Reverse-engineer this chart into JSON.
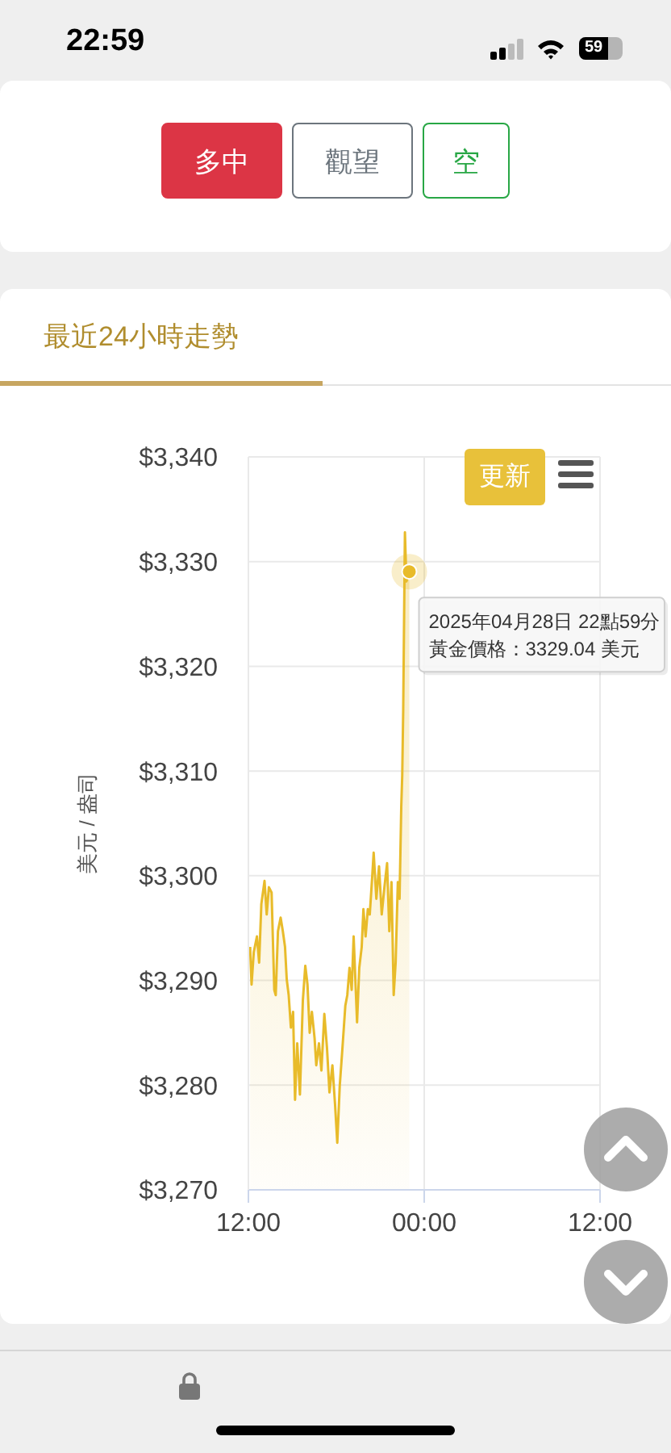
{
  "chart_data": {
    "type": "area",
    "title": "最近24小時走勢",
    "ylabel": "美元 / 盎司",
    "x": [
      "2025-04-28T12:07",
      "2025-04-28T12:13",
      "2025-04-28T12:22",
      "2025-04-28T12:35",
      "2025-04-28T12:44",
      "2025-04-28T12:53",
      "2025-04-28T13:06",
      "2025-04-28T13:15",
      "2025-04-28T13:24",
      "2025-04-28T13:35",
      "2025-04-28T13:46",
      "2025-04-28T13:52",
      "2025-04-28T14:01",
      "2025-04-28T14:12",
      "2025-04-28T14:21",
      "2025-04-28T14:30",
      "2025-04-28T14:37",
      "2025-04-28T14:45",
      "2025-04-28T14:54",
      "2025-04-28T15:03",
      "2025-04-28T15:11",
      "2025-04-28T15:20",
      "2025-04-28T15:31",
      "2025-04-28T15:43",
      "2025-04-28T15:53",
      "2025-04-28T16:02",
      "2025-04-28T16:11",
      "2025-04-28T16:20",
      "2025-04-28T16:31",
      "2025-04-28T16:38",
      "2025-04-28T16:49",
      "2025-04-28T16:59",
      "2025-04-28T17:11",
      "2025-04-28T17:22",
      "2025-04-28T17:32",
      "2025-04-28T17:44",
      "2025-04-28T17:55",
      "2025-04-28T18:04",
      "2025-04-28T18:14",
      "2025-04-28T18:25",
      "2025-04-28T18:37",
      "2025-04-28T18:45",
      "2025-04-28T18:54",
      "2025-04-28T19:03",
      "2025-04-28T19:11",
      "2025-04-28T19:25",
      "2025-04-28T19:34",
      "2025-04-28T19:44",
      "2025-04-28T19:51",
      "2025-04-28T20:00",
      "2025-04-28T20:09",
      "2025-04-28T20:17",
      "2025-04-28T20:27",
      "2025-04-28T20:33",
      "2025-04-28T20:44",
      "2025-04-28T20:55",
      "2025-04-28T21:06",
      "2025-04-28T21:17",
      "2025-04-28T21:28",
      "2025-04-28T21:37",
      "2025-04-28T21:46",
      "2025-04-28T21:55",
      "2025-04-28T22:03",
      "2025-04-28T22:12",
      "2025-04-28T22:19",
      "2025-04-28T22:26",
      "2025-04-28T22:30",
      "2025-04-28T22:34",
      "2025-04-28T22:41",
      "2025-04-28T22:47",
      "2025-04-28T22:59"
    ],
    "series": [
      {
        "color": "#e8bb2a",
        "values": [
          3293.2,
          3289.6,
          3292.7,
          3294.2,
          3291.7,
          3297.3,
          3299.5,
          3296.3,
          3298.9,
          3298.4,
          3289.1,
          3288.6,
          3294.7,
          3296.0,
          3294.7,
          3293.2,
          3290.1,
          3288.6,
          3285.5,
          3287.0,
          3278.6,
          3284.0,
          3279.1,
          3288.1,
          3291.4,
          3289.6,
          3285.0,
          3287.0,
          3284.5,
          3281.9,
          3284.0,
          3281.4,
          3286.8,
          3283.5,
          3279.3,
          3281.9,
          3278.1,
          3274.5,
          3279.9,
          3283.5,
          3287.6,
          3288.6,
          3291.2,
          3289.1,
          3294.2,
          3286.0,
          3291.2,
          3293.2,
          3296.8,
          3294.2,
          3296.8,
          3296.3,
          3299.9,
          3302.2,
          3297.8,
          3300.9,
          3296.3,
          3298.9,
          3301.2,
          3294.7,
          3299.4,
          3288.6,
          3291.7,
          3299.4,
          3297.8,
          3306.6,
          3309.6,
          3315.8,
          3332.8,
          3328.1,
          3329.04
        ]
      }
    ],
    "xlim": [
      "2025-04-28T12:00",
      "2025-04-29T12:00"
    ],
    "xticks": [
      {
        "value": "2025-04-28T12:00",
        "label": "12:00"
      },
      {
        "value": "2025-04-29T00:00",
        "label": "00:00"
      },
      {
        "value": "2025-04-29T12:00",
        "label": "12:00"
      }
    ],
    "ylim": [
      3270,
      3340
    ],
    "yticks": [
      {
        "value": 3270,
        "label": "$3,270"
      },
      {
        "value": 3280,
        "label": "$3,280"
      },
      {
        "value": 3290,
        "label": "$3,290"
      },
      {
        "value": 3300,
        "label": "$3,300"
      },
      {
        "value": 3310,
        "label": "$3,310"
      },
      {
        "value": 3320,
        "label": "$3,320"
      },
      {
        "value": 3330,
        "label": "$3,330"
      },
      {
        "value": 3340,
        "label": "$3,340"
      }
    ],
    "grid": true,
    "annotations": [
      "22:59",
      "59",
      "多中",
      "觀望",
      "空",
      "更新",
      {
        "text": "2025年04月28日 22點59分",
        "x": "2025-04-28T22:59",
        "y": 3329.04
      },
      "黃金價格：3329.04 美元"
    ]
  }
}
